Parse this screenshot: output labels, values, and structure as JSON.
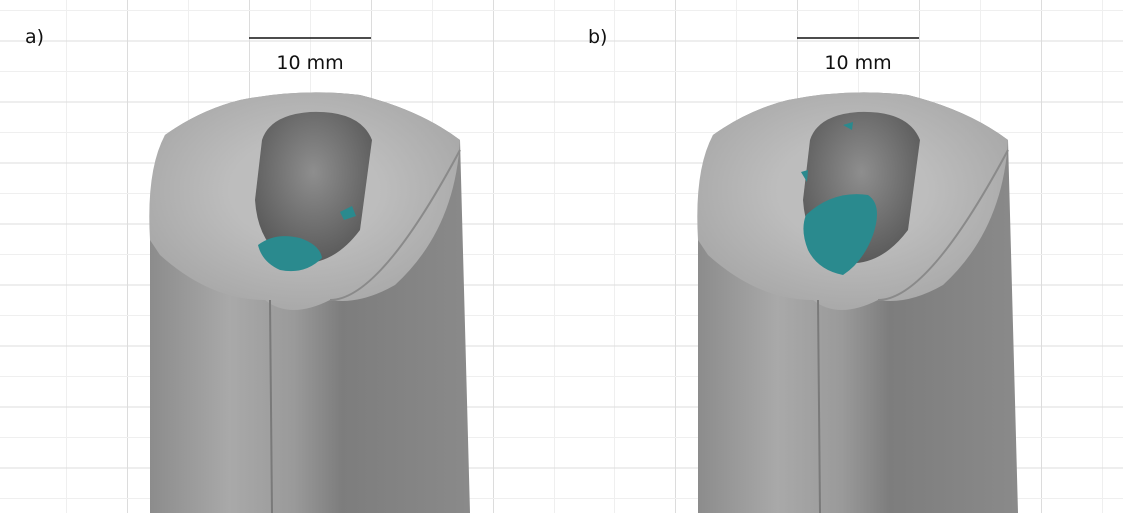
{
  "panels": [
    {
      "label": "a)",
      "scale_bar": "10 mm"
    },
    {
      "label": "b)",
      "scale_bar": "10 mm"
    }
  ]
}
